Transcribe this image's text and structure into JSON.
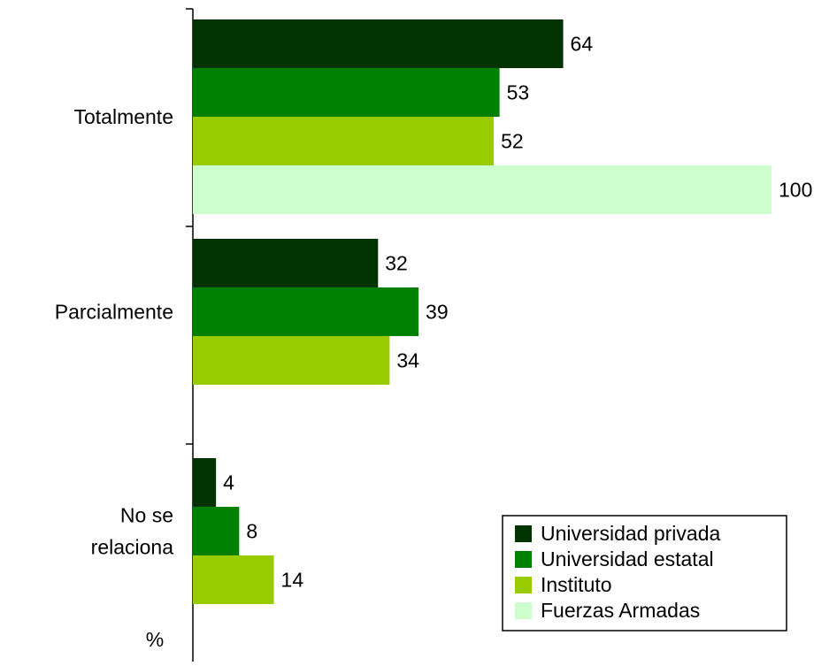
{
  "chart_data": {
    "type": "bar",
    "orientation": "horizontal",
    "categories": [
      "Totalmente",
      "Parcialmente",
      "No se relaciona"
    ],
    "category_lines": [
      [
        "Totalmente"
      ],
      [
        "Parcialmente"
      ],
      [
        "No se",
        "relaciona"
      ]
    ],
    "series": [
      {
        "name": "Universidad privada",
        "color": "#003300",
        "values": [
          64,
          32,
          4
        ]
      },
      {
        "name": "Universidad estatal",
        "color": "#008000",
        "values": [
          53,
          39,
          8
        ]
      },
      {
        "name": "Instituto",
        "color": "#99cc00",
        "values": [
          52,
          34,
          14
        ]
      },
      {
        "name": "Fuerzas Armadas",
        "color": "#ccffcc",
        "values": [
          100,
          null,
          null
        ]
      }
    ],
    "xlim": [
      0,
      100
    ],
    "axis_unit": "%",
    "data_labels": true,
    "grid": false,
    "legend_position": "bottom-right"
  }
}
